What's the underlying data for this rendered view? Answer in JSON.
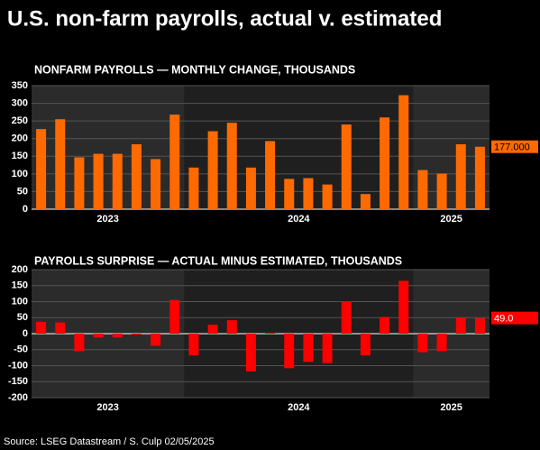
{
  "title": "U.S. non-farm payrolls, actual v. estimated",
  "source": "Source: LSEG Datastream / S. Culp 02/05/2025",
  "chart_data": [
    {
      "type": "bar",
      "title": "NONFARM PAYROLLS — MONTHLY CHANGE, THOUSANDS",
      "categories": [
        "2023",
        "2023",
        "2023",
        "2023",
        "2023",
        "2023",
        "2023",
        "2023",
        "2024",
        "2024",
        "2024",
        "2024",
        "2024",
        "2024",
        "2024",
        "2024",
        "2024",
        "2024",
        "2024",
        "2024",
        "2025",
        "2025",
        "2025",
        "2025"
      ],
      "values": [
        227,
        255,
        147,
        157,
        157,
        184,
        142,
        268,
        118,
        221,
        245,
        118,
        193,
        86,
        88,
        70,
        240,
        43,
        260,
        323,
        111,
        101,
        184,
        177
      ],
      "value_labels": [
        null,
        null,
        null,
        null,
        null,
        null,
        null,
        null,
        null,
        null,
        null,
        null,
        null,
        null,
        null,
        null,
        null,
        null,
        null,
        null,
        null,
        null,
        null,
        "177.000"
      ],
      "color": "#ff6a00",
      "label_text_color": "#000000",
      "ylim": [
        0,
        350
      ],
      "yticks": [
        0,
        50,
        100,
        150,
        200,
        250,
        300,
        350
      ],
      "grid": true
    },
    {
      "type": "bar",
      "title": "PAYROLLS SURPRISE — ACTUAL MINUS ESTIMATED, THOUSANDS",
      "categories": [
        "2023",
        "2023",
        "2023",
        "2023",
        "2023",
        "2023",
        "2023",
        "2023",
        "2024",
        "2024",
        "2024",
        "2024",
        "2024",
        "2024",
        "2024",
        "2024",
        "2024",
        "2024",
        "2024",
        "2024",
        "2025",
        "2025",
        "2025",
        "2025"
      ],
      "values": [
        37,
        35,
        -55,
        -12,
        -12,
        -3,
        -38,
        105,
        -68,
        28,
        42,
        -118,
        3,
        -108,
        -88,
        -92,
        100,
        -68,
        52,
        165,
        -58,
        -55,
        50,
        49
      ],
      "value_labels": [
        null,
        null,
        null,
        null,
        null,
        null,
        null,
        null,
        null,
        null,
        null,
        null,
        null,
        null,
        null,
        null,
        null,
        null,
        null,
        null,
        null,
        null,
        null,
        "49.0"
      ],
      "color": "#ff0000",
      "label_text_color": "#ffffff",
      "ylim": [
        -200,
        200
      ],
      "yticks": [
        -200,
        -150,
        -100,
        -50,
        0,
        50,
        100,
        150,
        200
      ],
      "grid": true
    }
  ]
}
